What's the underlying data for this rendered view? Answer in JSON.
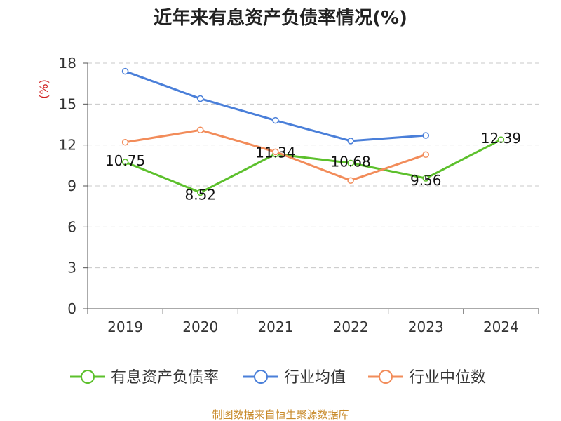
{
  "title": "近年来有息资产负债率情况(%)",
  "unit_label": "(%)",
  "source_text": "制图数据来自恒生聚源数据库",
  "chart_data": {
    "type": "line",
    "categories": [
      "2019",
      "2020",
      "2021",
      "2022",
      "2023",
      "2024"
    ],
    "ylim": [
      0,
      18
    ],
    "yticks": [
      "0",
      "3",
      "6",
      "9",
      "12",
      "15",
      "18"
    ],
    "grid": true,
    "legend_position": "bottom",
    "series": [
      {
        "name": "有息资产负债率",
        "color": "#5cc02c",
        "values": [
          10.75,
          8.52,
          11.34,
          10.68,
          9.56,
          12.39
        ],
        "labels": [
          "10.75",
          "8.52",
          "11.34",
          "10.68",
          "9.56",
          "12.39"
        ]
      },
      {
        "name": "行业均值",
        "color": "#4a7fd9",
        "values": [
          17.4,
          15.4,
          13.8,
          12.3,
          12.7,
          null
        ],
        "labels": []
      },
      {
        "name": "行业中位数",
        "color": "#f28c5a",
        "values": [
          12.2,
          13.1,
          11.5,
          9.4,
          11.3,
          null
        ],
        "labels": []
      }
    ]
  }
}
